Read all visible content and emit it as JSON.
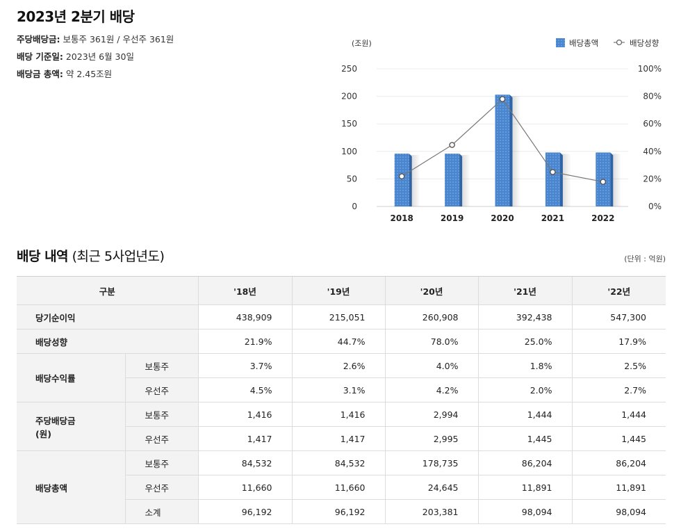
{
  "header": {
    "title": "2023년 2분기 배당"
  },
  "summary": [
    {
      "label": "주당배당금:",
      "value": "보통주 361원 / 우선주 361원"
    },
    {
      "label": "배당 기준일:",
      "value": "2023년 6월 30일"
    },
    {
      "label": "배당금 총액:",
      "value": "약 2.45조원"
    }
  ],
  "chart_data": {
    "type": "bar",
    "left_unit": "(조원)",
    "categories": [
      "2018",
      "2019",
      "2020",
      "2021",
      "2022"
    ],
    "series": [
      {
        "name": "배당총액",
        "type": "bar",
        "axis": "left",
        "values": [
          96,
          96,
          203,
          98,
          98
        ]
      },
      {
        "name": "배당성향",
        "type": "line",
        "axis": "right",
        "values": [
          21.9,
          44.7,
          78.0,
          25.0,
          17.9
        ]
      }
    ],
    "y_left": {
      "min": 0,
      "max": 250,
      "ticks": [
        "0",
        "50",
        "100",
        "150",
        "200",
        "250"
      ]
    },
    "y_right": {
      "min": 0,
      "max": 100,
      "ticks": [
        "0%",
        "20%",
        "40%",
        "60%",
        "80%",
        "100%"
      ]
    },
    "grid": true,
    "legend_position": "top-right",
    "colors": {
      "bar": "#4a86cf",
      "bar_dark": "#2f64a6",
      "line": "#777777"
    }
  },
  "section": {
    "title": "배당 내역",
    "subtitle": "(최근 5사업년도)",
    "unit_note": "(단위 : 억원)"
  },
  "table": {
    "header": [
      "구분",
      "'18년",
      "'19년",
      "'20년",
      "'21년",
      "'22년"
    ],
    "rows": {
      "net_income": {
        "label": "당기순이익",
        "values": [
          "438,909",
          "215,051",
          "260,908",
          "392,438",
          "547,300"
        ]
      },
      "payout_ratio": {
        "label": "배당성향",
        "values": [
          "21.9%",
          "44.7%",
          "78.0%",
          "25.0%",
          "17.9%"
        ]
      },
      "yield": {
        "label": "배당수익률",
        "common": {
          "label": "보통주",
          "values": [
            "3.7%",
            "2.6%",
            "4.0%",
            "1.8%",
            "2.5%"
          ]
        },
        "preferred": {
          "label": "우선주",
          "values": [
            "4.5%",
            "3.1%",
            "4.2%",
            "2.0%",
            "2.7%"
          ]
        }
      },
      "dps": {
        "label": "주당배당금",
        "label2": "(원)",
        "common": {
          "label": "보통주",
          "values": [
            "1,416",
            "1,416",
            "2,994",
            "1,444",
            "1,444"
          ]
        },
        "preferred": {
          "label": "우선주",
          "values": [
            "1,417",
            "1,417",
            "2,995",
            "1,445",
            "1,445"
          ]
        }
      },
      "total": {
        "label": "배당총액",
        "common": {
          "label": "보통주",
          "values": [
            "84,532",
            "84,532",
            "178,735",
            "86,204",
            "86,204"
          ]
        },
        "preferred": {
          "label": "우선주",
          "values": [
            "11,660",
            "11,660",
            "24,645",
            "11,891",
            "11,891"
          ]
        },
        "subtotal": {
          "label": "소계",
          "values": [
            "96,192",
            "96,192",
            "203,381",
            "98,094",
            "98,094"
          ]
        }
      }
    }
  }
}
